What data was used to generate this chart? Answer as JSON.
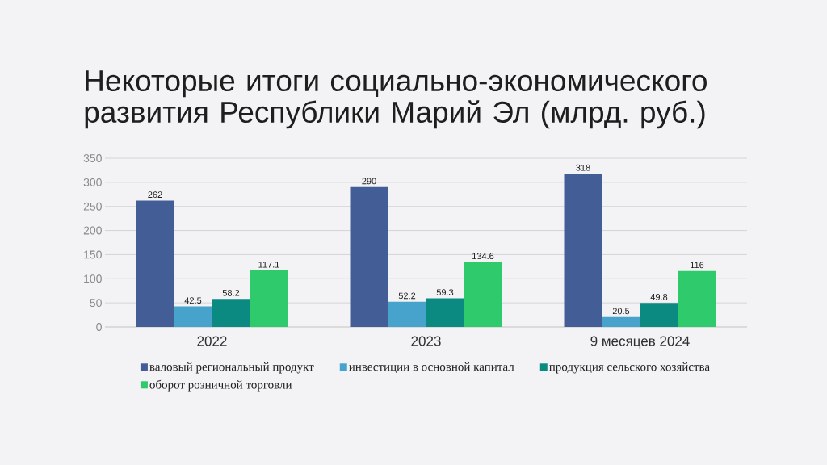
{
  "chart_data": {
    "type": "bar",
    "title": "Некоторые итоги социально-экономического развития Республики Марий Эл (млрд. руб.)",
    "categories": [
      "2022",
      "2023",
      "9 месяцев 2024"
    ],
    "series": [
      {
        "name": "валовый региональный продукт",
        "color": "#435d97",
        "values": [
          262,
          290,
          318
        ]
      },
      {
        "name": "инвестиции в основной капитал",
        "color": "#47a3cb",
        "values": [
          42.5,
          52.2,
          20.5
        ]
      },
      {
        "name": "продукция сельского хозяйства",
        "color": "#0b8a82",
        "values": [
          58.2,
          59.3,
          49.8
        ]
      },
      {
        "name": "оборот розничной торговли",
        "color": "#2fca6b",
        "values": [
          117.1,
          134.6,
          116
        ]
      }
    ],
    "ylim": [
      0,
      350
    ],
    "yticks": [
      0,
      50,
      100,
      150,
      200,
      250,
      300,
      350
    ],
    "grid": "y",
    "legend": "bottom",
    "data_labels": true
  }
}
